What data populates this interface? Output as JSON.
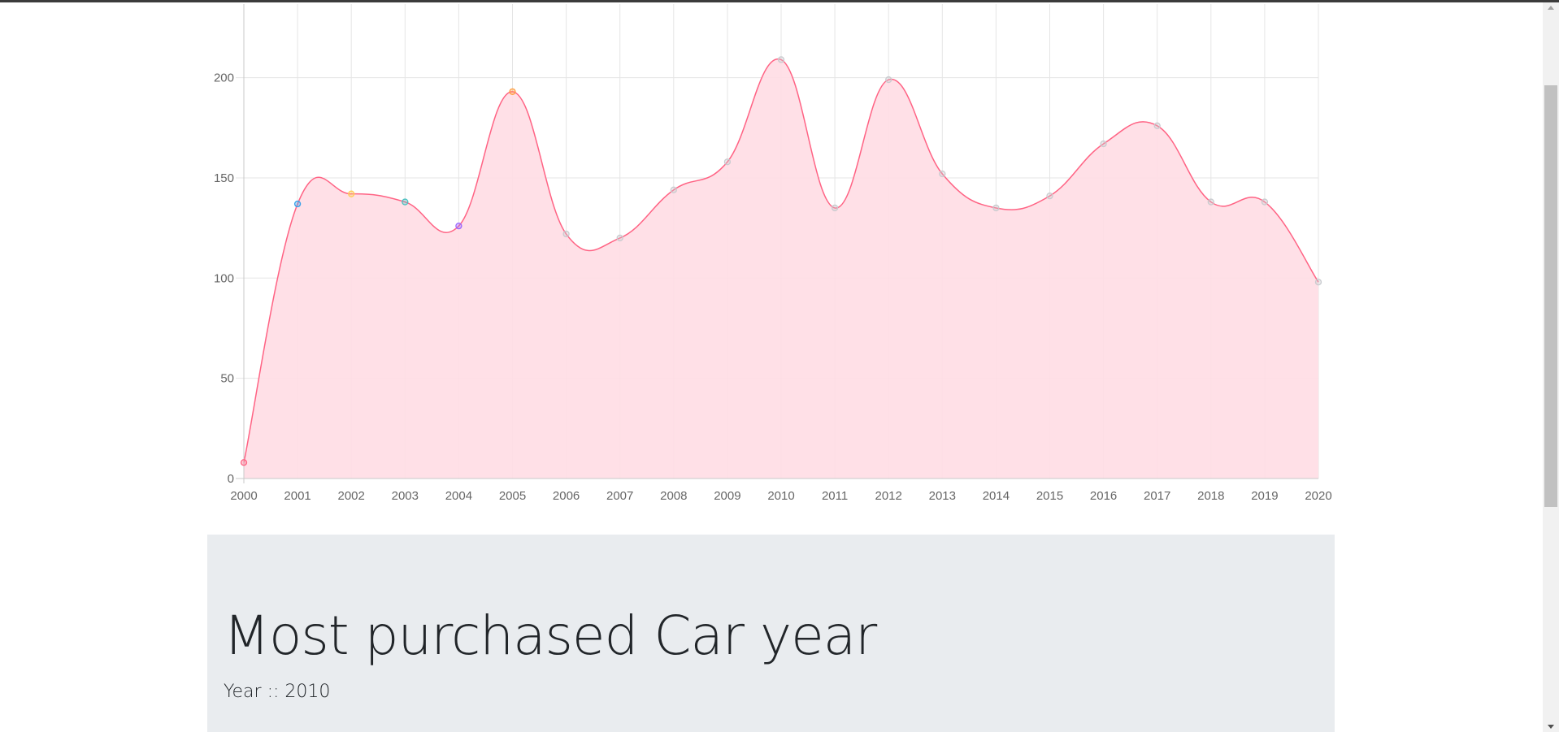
{
  "chart_data": {
    "type": "line",
    "fill": true,
    "smooth": true,
    "x": [
      "2000",
      "2001",
      "2002",
      "2003",
      "2004",
      "2005",
      "2006",
      "2007",
      "2008",
      "2009",
      "2010",
      "2011",
      "2012",
      "2013",
      "2014",
      "2015",
      "2016",
      "2017",
      "2018",
      "2019",
      "2020"
    ],
    "series": [
      {
        "values": [
          8,
          137,
          142,
          138,
          126,
          193,
          122,
          120,
          144,
          158,
          209,
          135,
          199,
          152,
          135,
          141,
          167,
          176,
          138,
          138,
          98
        ],
        "color": "#ff6384",
        "fill_color": "#ffdde4"
      }
    ],
    "point_colors": [
      "#ff6384",
      "#36a2eb",
      "#ffce56",
      "#4bc0c0",
      "#9966ff",
      "#ff9f40",
      "#c9cbcf",
      "#c9cbcf",
      "#c9cbcf",
      "#c9cbcf",
      "#c9cbcf",
      "#c9cbcf",
      "#c9cbcf",
      "#c9cbcf",
      "#c9cbcf",
      "#c9cbcf",
      "#c9cbcf",
      "#c9cbcf",
      "#c9cbcf",
      "#c9cbcf",
      "#c9cbcf"
    ],
    "yticks": [
      0,
      50,
      100,
      150,
      200
    ],
    "ylim": [
      0,
      200
    ],
    "grid": true,
    "grid_color": "#e5e5e5",
    "xlabel": "",
    "ylabel": "",
    "title": ""
  },
  "jumbotron": {
    "title": "Most purchased Car year",
    "subtitle": "Year :: 2010"
  },
  "colors": {
    "jumbotron_bg": "#e9ecef",
    "text": "#212529"
  }
}
